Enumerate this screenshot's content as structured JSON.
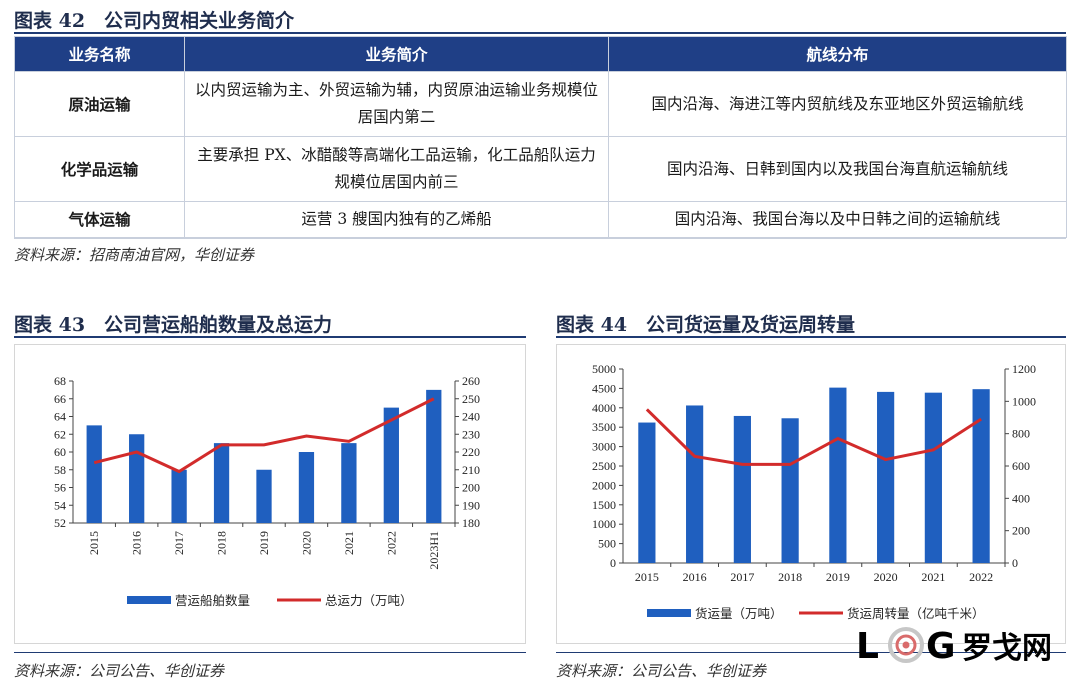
{
  "fig42": {
    "title": "图表 42　公司内贸相关业务简介",
    "headers": [
      "业务名称",
      "业务简介",
      "航线分布"
    ],
    "rows": [
      {
        "name": "原油运输",
        "intro": "以内贸运输为主、外贸运输为辅，内贸原油运输业务规模位居国内第二",
        "routes": "国内沿海、海进江等内贸航线及东亚地区外贸运输航线"
      },
      {
        "name": "化学品运输",
        "intro": "主要承担 PX、冰醋酸等高端化工品运输，化工品船队运力规模位居国内前三",
        "routes": "国内沿海、日韩到国内以及我国台海直航运输航线"
      },
      {
        "name": "气体运输",
        "intro": "运营 3 艘国内独有的乙烯船",
        "routes": "国内沿海、我国台海以及中日韩之间的运输航线"
      }
    ],
    "source": "资料来源：招商南油官网，华创证券"
  },
  "fig43": {
    "title": "图表 43　公司营运船舶数量及总运力",
    "source": "资料来源：公司公告、华创证券"
  },
  "fig44": {
    "title": "图表 44　公司货运量及货运周转量",
    "source": "资料来源：公司公告、华创证券"
  },
  "watermark": {
    "latin": "L",
    "latin2": "G",
    "cn": "罗戈网"
  },
  "colors": {
    "bar": "#1f5fbf",
    "line": "#d22b2b",
    "header": "#1f3f86"
  },
  "chart_data": [
    {
      "type": "bar",
      "categories": [
        "2015",
        "2016",
        "2017",
        "2018",
        "2019",
        "2020",
        "2021",
        "2022",
        "2023H1"
      ],
      "series": [
        {
          "name": "营运船舶数量",
          "type": "bar",
          "axis": "left",
          "values": [
            63,
            62,
            58,
            61,
            58,
            60,
            61,
            65,
            67
          ]
        },
        {
          "name": "总运力（万吨）",
          "type": "line",
          "axis": "right",
          "values": [
            214,
            220,
            209,
            224,
            224,
            229,
            226,
            238,
            250
          ]
        }
      ],
      "ylim_left": [
        52,
        68
      ],
      "yticks_left": [
        52,
        54,
        56,
        58,
        60,
        62,
        64,
        66,
        68
      ],
      "ylim_right": [
        180,
        260
      ],
      "yticks_right": [
        180,
        190,
        200,
        210,
        220,
        230,
        240,
        250,
        260
      ],
      "legend": "bottom",
      "grid": false,
      "xtick_rotation": -90
    },
    {
      "type": "bar",
      "categories": [
        "2015",
        "2016",
        "2017",
        "2018",
        "2019",
        "2020",
        "2021",
        "2022"
      ],
      "series": [
        {
          "name": "货运量（万吨）",
          "type": "bar",
          "axis": "left",
          "values": [
            3620,
            4060,
            3790,
            3730,
            4520,
            4410,
            4390,
            4480
          ]
        },
        {
          "name": "货运周转量（亿吨千米）",
          "type": "line",
          "axis": "right",
          "values": [
            950,
            660,
            610,
            610,
            770,
            640,
            700,
            890
          ]
        }
      ],
      "ylim_left": [
        0,
        5000
      ],
      "yticks_left": [
        0,
        500,
        1000,
        1500,
        2000,
        2500,
        3000,
        3500,
        4000,
        4500,
        5000
      ],
      "ylim_right": [
        0,
        1200
      ],
      "yticks_right": [
        0,
        200,
        400,
        600,
        800,
        1000,
        1200
      ],
      "legend": "bottom",
      "grid": false
    }
  ]
}
